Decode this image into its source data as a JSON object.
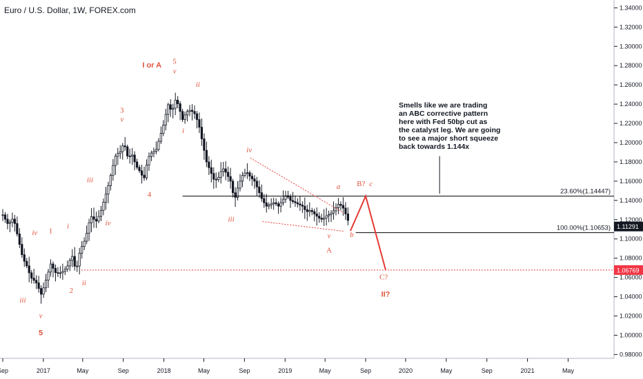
{
  "header": {
    "title": "Euro / U.S. Dollar, 1W, FOREX.com"
  },
  "colors": {
    "candle": "#131722",
    "wave": "#e0533d",
    "red": "#e53935",
    "fib": "#000000",
    "price_bg": "#131722",
    "level_bg": "#f23645"
  },
  "chart_data": {
    "type": "candlestick",
    "title": "Euro / U.S. Dollar, 1W, FOREX.com",
    "y_ticks": [
      "0.98000",
      "1.00000",
      "1.02000",
      "1.04000",
      "1.06000",
      "1.08000",
      "1.10000",
      "1.12000",
      "1.14000",
      "1.16000",
      "1.18000",
      "1.20000",
      "1.22000",
      "1.24000",
      "1.26000",
      "1.28000",
      "1.30000",
      "1.32000",
      "1.34000"
    ],
    "x_ticks": [
      {
        "label": "Sep",
        "t": 0
      },
      {
        "label": "2017",
        "t": 61
      },
      {
        "label": "May",
        "t": 120
      },
      {
        "label": "Sep",
        "t": 181
      },
      {
        "label": "2018",
        "t": 242
      },
      {
        "label": "May",
        "t": 302
      },
      {
        "label": "Sep",
        "t": 363
      },
      {
        "label": "2019",
        "t": 424
      },
      {
        "label": "May",
        "t": 484
      },
      {
        "label": "Sep",
        "t": 545
      },
      {
        "label": "2020",
        "t": 605
      },
      {
        "label": "May",
        "t": 666
      },
      {
        "label": "Sep",
        "t": 727
      },
      {
        "label": "2021",
        "t": 788
      },
      {
        "label": "May",
        "t": 849
      }
    ],
    "ylim": [
      0.976,
      1.346
    ],
    "series": [
      {
        "t": 0,
        "close": 1.125
      },
      {
        "t": 8,
        "close": 1.115
      },
      {
        "t": 16,
        "close": 1.122
      },
      {
        "t": 24,
        "close": 1.098
      },
      {
        "t": 30,
        "close": 1.08
      },
      {
        "t": 36,
        "close": 1.072
      },
      {
        "t": 42,
        "close": 1.06
      },
      {
        "t": 50,
        "close": 1.055
      },
      {
        "t": 58,
        "close": 1.042
      },
      {
        "t": 66,
        "close": 1.06
      },
      {
        "t": 72,
        "close": 1.074
      },
      {
        "t": 80,
        "close": 1.064
      },
      {
        "t": 88,
        "close": 1.065
      },
      {
        "t": 96,
        "close": 1.07
      },
      {
        "t": 104,
        "close": 1.083
      },
      {
        "t": 110,
        "close": 1.066
      },
      {
        "t": 116,
        "close": 1.088
      },
      {
        "t": 124,
        "close": 1.1
      },
      {
        "t": 132,
        "close": 1.124
      },
      {
        "t": 140,
        "close": 1.118
      },
      {
        "t": 146,
        "close": 1.126
      },
      {
        "t": 152,
        "close": 1.14
      },
      {
        "t": 158,
        "close": 1.154
      },
      {
        "t": 164,
        "close": 1.172
      },
      {
        "t": 170,
        "close": 1.188
      },
      {
        "t": 176,
        "close": 1.19
      },
      {
        "t": 182,
        "close": 1.2
      },
      {
        "t": 188,
        "close": 1.184
      },
      {
        "t": 194,
        "close": 1.188
      },
      {
        "t": 200,
        "close": 1.176
      },
      {
        "t": 206,
        "close": 1.17
      },
      {
        "t": 212,
        "close": 1.162
      },
      {
        "t": 218,
        "close": 1.184
      },
      {
        "t": 224,
        "close": 1.19
      },
      {
        "t": 230,
        "close": 1.192
      },
      {
        "t": 236,
        "close": 1.206
      },
      {
        "t": 242,
        "close": 1.22
      },
      {
        "t": 248,
        "close": 1.24
      },
      {
        "t": 254,
        "close": 1.232
      },
      {
        "t": 260,
        "close": 1.246
      },
      {
        "t": 264,
        "close": 1.238
      },
      {
        "t": 270,
        "close": 1.224
      },
      {
        "t": 276,
        "close": 1.232
      },
      {
        "t": 282,
        "close": 1.234
      },
      {
        "t": 288,
        "close": 1.23
      },
      {
        "t": 294,
        "close": 1.22
      },
      {
        "t": 300,
        "close": 1.2
      },
      {
        "t": 306,
        "close": 1.18
      },
      {
        "t": 312,
        "close": 1.17
      },
      {
        "t": 318,
        "close": 1.16
      },
      {
        "t": 324,
        "close": 1.164
      },
      {
        "t": 330,
        "close": 1.174
      },
      {
        "t": 336,
        "close": 1.168
      },
      {
        "t": 342,
        "close": 1.16
      },
      {
        "t": 348,
        "close": 1.14
      },
      {
        "t": 354,
        "close": 1.156
      },
      {
        "t": 360,
        "close": 1.166
      },
      {
        "t": 366,
        "close": 1.17
      },
      {
        "t": 372,
        "close": 1.164
      },
      {
        "t": 378,
        "close": 1.16
      },
      {
        "t": 384,
        "close": 1.15
      },
      {
        "t": 390,
        "close": 1.14
      },
      {
        "t": 396,
        "close": 1.134
      },
      {
        "t": 402,
        "close": 1.136
      },
      {
        "t": 408,
        "close": 1.138
      },
      {
        "t": 414,
        "close": 1.134
      },
      {
        "t": 420,
        "close": 1.14
      },
      {
        "t": 426,
        "close": 1.146
      },
      {
        "t": 432,
        "close": 1.14
      },
      {
        "t": 438,
        "close": 1.138
      },
      {
        "t": 444,
        "close": 1.136
      },
      {
        "t": 450,
        "close": 1.134
      },
      {
        "t": 456,
        "close": 1.128
      },
      {
        "t": 462,
        "close": 1.13
      },
      {
        "t": 468,
        "close": 1.126
      },
      {
        "t": 474,
        "close": 1.122
      },
      {
        "t": 480,
        "close": 1.12
      },
      {
        "t": 486,
        "close": 1.124
      },
      {
        "t": 492,
        "close": 1.126
      },
      {
        "t": 498,
        "close": 1.13
      },
      {
        "t": 504,
        "close": 1.136
      },
      {
        "t": 510,
        "close": 1.134
      },
      {
        "t": 516,
        "close": 1.124
      },
      {
        "t": 522,
        "close": 1.112
      }
    ],
    "projection": [
      {
        "t": 522,
        "price": 1.1083
      },
      {
        "t": 545,
        "price": 1.1445
      },
      {
        "t": 575,
        "price": 1.0677
      }
    ],
    "levels": [
      {
        "label": "23.60%(1.14447)",
        "price": 1.14447
      },
      {
        "label": "100.00%(1.10653)",
        "price": 1.10653
      }
    ],
    "current_price": {
      "label": "1.11291",
      "price": 1.11291
    },
    "red_level": {
      "label": "1.06769",
      "price": 1.06769
    },
    "annotation": [
      "Smells like we are trading",
      "an ABC corrective pattern",
      "here with Fed 50bp cut as",
      "the catalyst leg. We are going",
      "to see a major short squeeze",
      "back towards 1.144x"
    ],
    "wave_labels": [
      {
        "text": "iii",
        "t": 30,
        "price": 1.034,
        "style": "italic"
      },
      {
        "text": "iv",
        "t": 48,
        "price": 1.104,
        "style": "italic"
      },
      {
        "text": "v",
        "t": 57,
        "price": 1.018,
        "style": "italic"
      },
      {
        "text": "5",
        "t": 57,
        "price": 1.0,
        "style": "bold"
      },
      {
        "text": "1",
        "t": 72,
        "price": 1.106,
        "style": "plain"
      },
      {
        "text": "i",
        "t": 98,
        "price": 1.111,
        "style": "italic"
      },
      {
        "text": "2",
        "t": 103,
        "price": 1.044,
        "style": "plain"
      },
      {
        "text": "ii",
        "t": 122,
        "price": 1.052,
        "style": "italic"
      },
      {
        "text": "iii",
        "t": 131,
        "price": 1.159,
        "style": "italic"
      },
      {
        "text": "iv",
        "t": 158,
        "price": 1.114,
        "style": "italic"
      },
      {
        "text": "3",
        "t": 179,
        "price": 1.231,
        "style": "plain"
      },
      {
        "text": "v",
        "t": 179,
        "price": 1.222,
        "style": "italic"
      },
      {
        "text": "4",
        "t": 220,
        "price": 1.144,
        "style": "plain"
      },
      {
        "text": "I or A",
        "t": 224,
        "price": 1.278,
        "style": "bold"
      },
      {
        "text": "5",
        "t": 258,
        "price": 1.282,
        "style": "plain"
      },
      {
        "text": "v",
        "t": 258,
        "price": 1.272,
        "style": "italic"
      },
      {
        "text": "i",
        "t": 271,
        "price": 1.21,
        "style": "italic"
      },
      {
        "text": "ii",
        "t": 293,
        "price": 1.258,
        "style": "italic"
      },
      {
        "text": "iii",
        "t": 343,
        "price": 1.118,
        "style": "italic"
      },
      {
        "text": "iv",
        "t": 370,
        "price": 1.19,
        "style": "italic"
      },
      {
        "text": "a",
        "t": 504,
        "price": 1.152,
        "style": "italic"
      },
      {
        "text": "v",
        "t": 490,
        "price": 1.101,
        "style": "italic"
      },
      {
        "text": "A",
        "t": 490,
        "price": 1.086,
        "style": "plain"
      },
      {
        "text": "b",
        "t": 524,
        "price": 1.102,
        "style": "italic"
      },
      {
        "text": "B?",
        "t": 538,
        "price": 1.155,
        "style": "plain"
      },
      {
        "text": "c",
        "t": 553,
        "price": 1.155,
        "style": "italic"
      },
      {
        "text": "C?",
        "t": 572,
        "price": 1.058,
        "style": "plain"
      },
      {
        "text": "II?",
        "t": 575,
        "price": 1.04,
        "style": "bold"
      }
    ]
  }
}
